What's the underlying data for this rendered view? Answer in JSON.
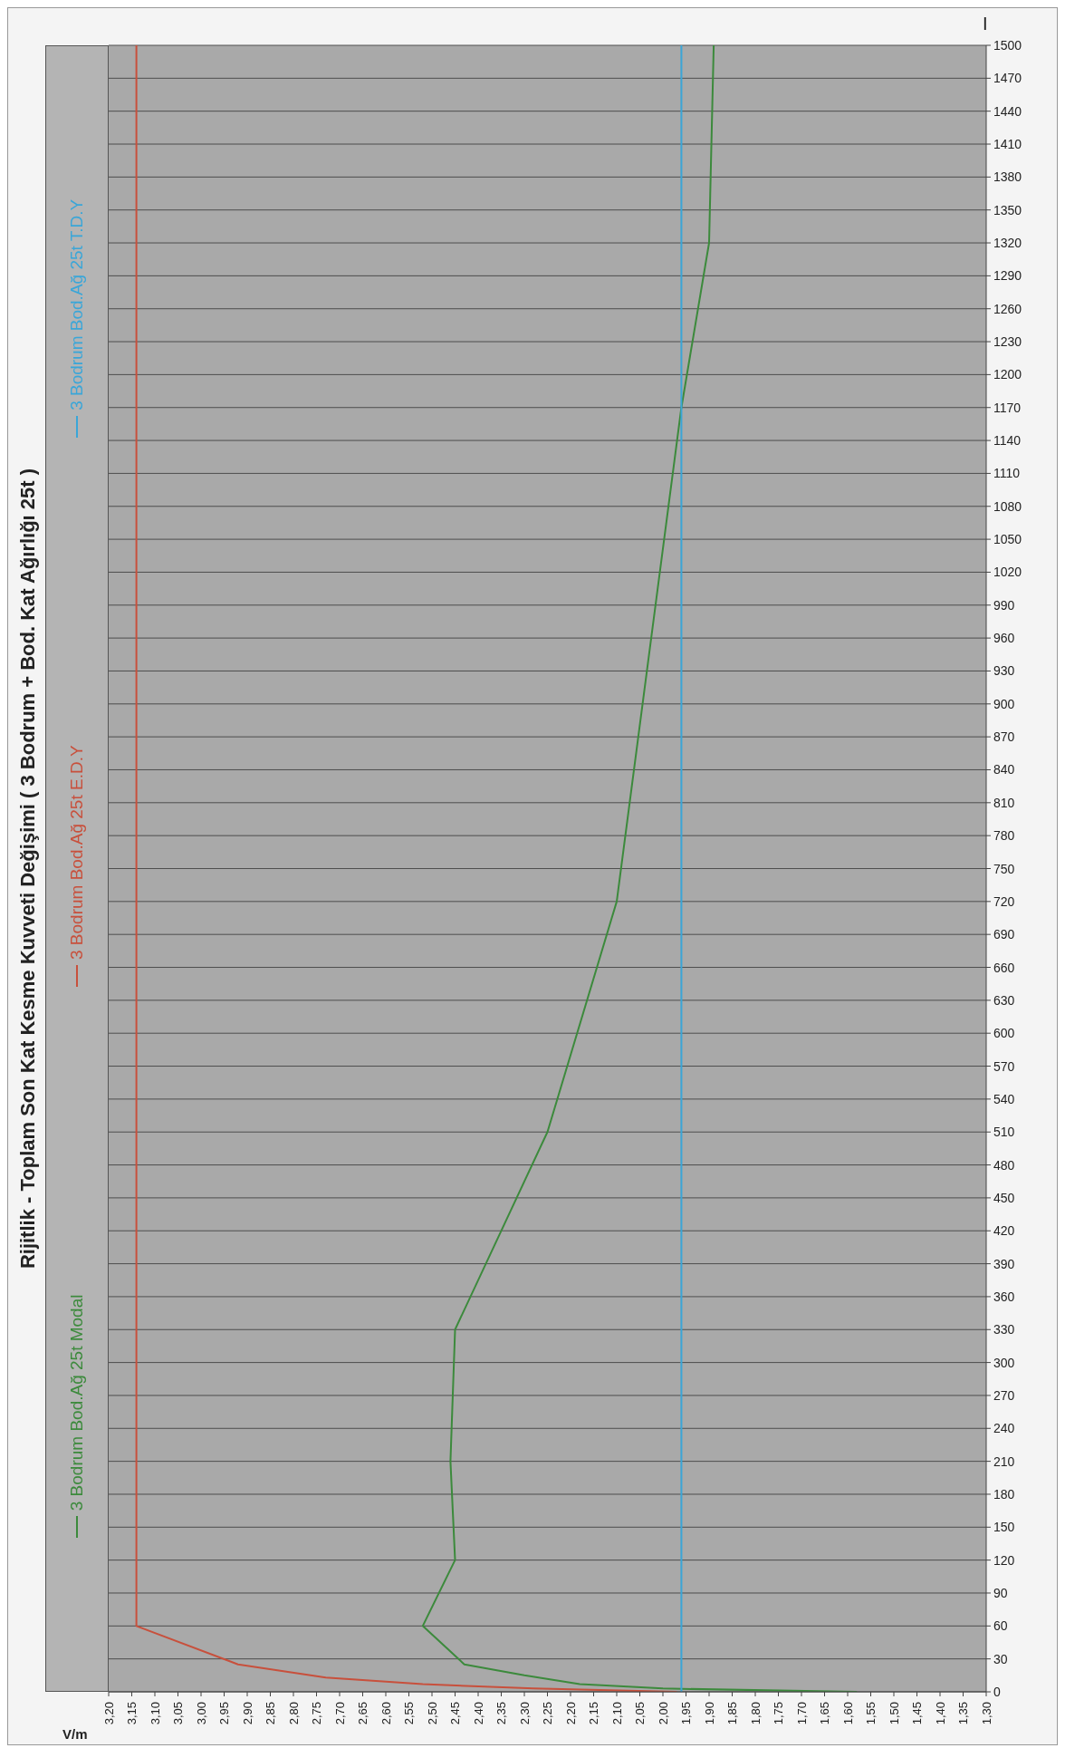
{
  "chart_data": {
    "type": "line",
    "title": "Rijitlik - Toplam Son Kat Kesme Kuvveti Değişimi ( 3 Bodrum + Bod. Kat Ağırlığı 25t )",
    "xlabel": "V/m",
    "ylabel": "I",
    "series": [
      {
        "name": "3 Bodrum Bod.Ağ 25t Modal",
        "color": "#3c8a3c",
        "x": [
          1.58,
          2.0,
          2.18,
          2.3,
          2.43,
          2.52,
          2.45,
          2.46,
          2.45,
          2.25,
          2.1,
          1.96,
          1.9,
          1.89
        ],
        "values": [
          0,
          3,
          7,
          15,
          25,
          60,
          120,
          210,
          330,
          510,
          720,
          1170,
          1320,
          1500
        ]
      },
      {
        "name": "3 Bodrum Bod.Ağ 25t E.D.Y",
        "color": "#c8503c",
        "x": [
          1.97,
          2.28,
          2.52,
          2.73,
          2.92,
          3.14,
          3.14
        ],
        "values": [
          0,
          3,
          7,
          13,
          25,
          60,
          1500
        ]
      },
      {
        "name": "3 Bodrum Bod.Ağ 25t T.D.Y",
        "color": "#3aa6d8",
        "x": [
          1.96,
          1.96
        ],
        "values": [
          0,
          1500
        ]
      }
    ],
    "ylim": [
      0,
      1500
    ],
    "yticks": [
      0,
      30,
      60,
      90,
      120,
      150,
      180,
      210,
      240,
      270,
      300,
      330,
      360,
      390,
      420,
      450,
      480,
      510,
      540,
      570,
      600,
      630,
      660,
      690,
      720,
      750,
      780,
      810,
      840,
      870,
      900,
      930,
      960,
      990,
      1020,
      1050,
      1080,
      1110,
      1140,
      1170,
      1200,
      1230,
      1260,
      1290,
      1320,
      1350,
      1380,
      1410,
      1440,
      1470,
      1500
    ],
    "xlim": [
      3.2,
      1.3
    ],
    "xticks": [
      {
        "value": 3.2,
        "label": "3,20"
      },
      {
        "value": 3.15,
        "label": "3,15"
      },
      {
        "value": 3.1,
        "label": "3,10"
      },
      {
        "value": 3.05,
        "label": "3,05"
      },
      {
        "value": 3.0,
        "label": "3,00"
      },
      {
        "value": 2.95,
        "label": "2,95"
      },
      {
        "value": 2.9,
        "label": "2,90"
      },
      {
        "value": 2.85,
        "label": "2,85"
      },
      {
        "value": 2.8,
        "label": "2,80"
      },
      {
        "value": 2.75,
        "label": "2,75"
      },
      {
        "value": 2.7,
        "label": "2,70"
      },
      {
        "value": 2.65,
        "label": "2,65"
      },
      {
        "value": 2.6,
        "label": "2,60"
      },
      {
        "value": 2.55,
        "label": "2,55"
      },
      {
        "value": 2.5,
        "label": "2,50"
      },
      {
        "value": 2.45,
        "label": "2,45"
      },
      {
        "value": 2.4,
        "label": "2,40"
      },
      {
        "value": 2.35,
        "label": "2,35"
      },
      {
        "value": 2.3,
        "label": "2,30"
      },
      {
        "value": 2.25,
        "label": "2,25"
      },
      {
        "value": 2.2,
        "label": "2,20"
      },
      {
        "value": 2.15,
        "label": "2,15"
      },
      {
        "value": 2.1,
        "label": "2,10"
      },
      {
        "value": 2.05,
        "label": "2,05"
      },
      {
        "value": 2.0,
        "label": "2,00"
      },
      {
        "value": 1.95,
        "label": "1,95"
      },
      {
        "value": 1.9,
        "label": "1,90"
      },
      {
        "value": 1.85,
        "label": "1,85"
      },
      {
        "value": 1.8,
        "label": "1,80"
      },
      {
        "value": 1.75,
        "label": "1,75"
      },
      {
        "value": 1.7,
        "label": "1,70"
      },
      {
        "value": 1.65,
        "label": "1,65"
      },
      {
        "value": 1.6,
        "label": "1,60"
      },
      {
        "value": 1.55,
        "label": "1,55"
      },
      {
        "value": 1.5,
        "label": "1,50"
      },
      {
        "value": 1.45,
        "label": "1,45"
      },
      {
        "value": 1.4,
        "label": "1,40"
      },
      {
        "value": 1.35,
        "label": "1,35"
      },
      {
        "value": 1.3,
        "label": "1,30"
      }
    ],
    "grid": "y",
    "legend": "left",
    "marker": "none"
  }
}
